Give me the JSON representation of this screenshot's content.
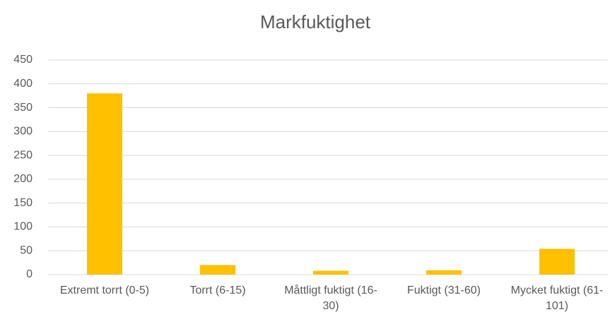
{
  "chart_data": {
    "type": "bar",
    "title": "Markfuktighet",
    "categories": [
      "Extremt torrt (0-5)",
      "Torrt (6-15)",
      "Måttligt fuktigt (16-30)",
      "Fuktigt (31-60)",
      "Mycket fuktigt (61-101)"
    ],
    "values": [
      380,
      20,
      8,
      9,
      54
    ],
    "color": "#ffc000",
    "ylim": [
      0,
      450
    ],
    "yticks": [
      0,
      50,
      100,
      150,
      200,
      250,
      300,
      350,
      400,
      450
    ],
    "grid": true
  }
}
